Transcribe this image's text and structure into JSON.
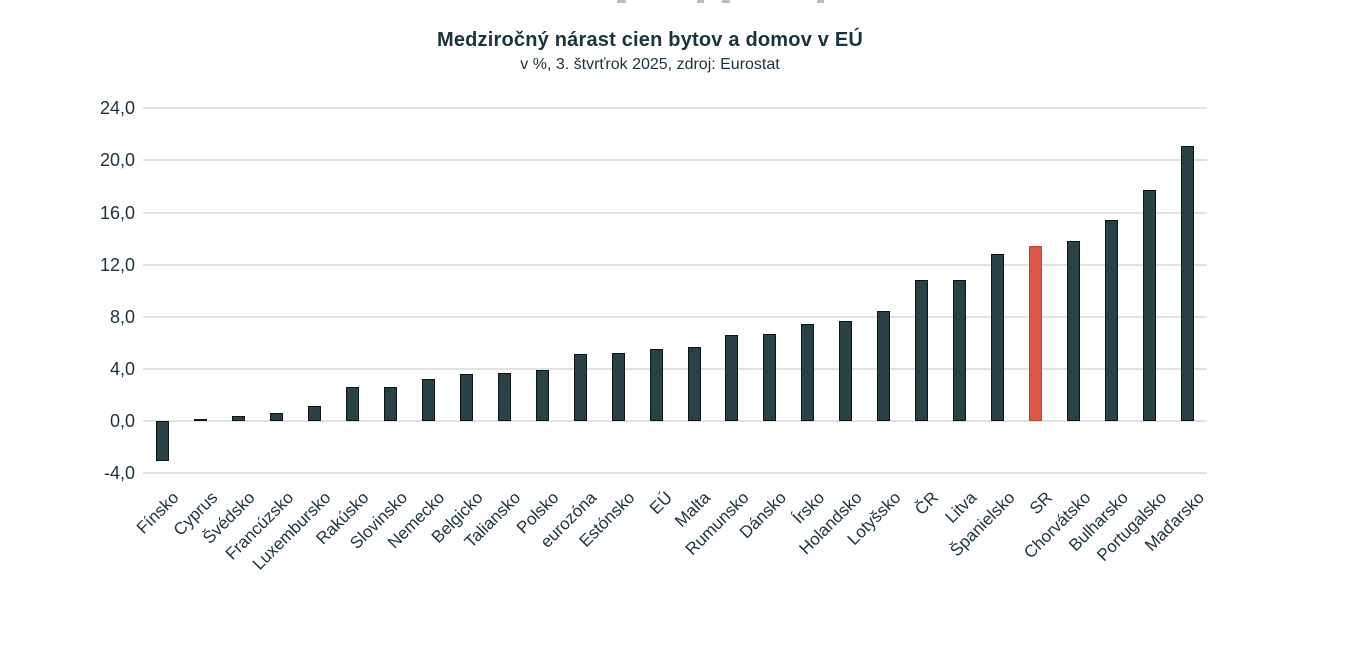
{
  "chart_data": {
    "type": "bar",
    "title": "Medziročný nárast cien bytov a domov v EÚ",
    "subtitle": "v %, 3. štvrťrok 2025, zdroj: Eurostat",
    "categories": [
      "Fínsko",
      "Cyprus",
      "Švédsko",
      "Francúzsko",
      "Luxembursko",
      "Rakúsko",
      "Slovinsko",
      "Nemecko",
      "Belgicko",
      "Taliansko",
      "Polsko",
      "eurozóna",
      "Estónsko",
      "EÚ",
      "Malta",
      "Rumunsko",
      "Dánsko",
      "Írsko",
      "Holandsko",
      "Lotyšsko",
      "ČR",
      "Litva",
      "Španielsko",
      "SR",
      "Chorvátsko",
      "Bulharsko",
      "Portugalsko",
      "Maďarsko"
    ],
    "values": [
      -3.1,
      0.0,
      0.4,
      0.6,
      1.1,
      2.6,
      2.6,
      3.2,
      3.6,
      3.7,
      3.9,
      5.1,
      5.2,
      5.5,
      5.7,
      6.6,
      6.7,
      7.4,
      7.7,
      8.4,
      10.8,
      10.8,
      12.8,
      13.4,
      13.8,
      15.4,
      17.7,
      21.1
    ],
    "highlight_category": "SR",
    "xlabel": "",
    "ylabel": "",
    "ylim": [
      -4,
      24
    ],
    "ytick_step": 4,
    "ytick_labels": [
      "24,0",
      "20,0",
      "16,0",
      "12,0",
      "8,0",
      "4,0",
      "0,0",
      "-4,0"
    ],
    "decimal_separator": ",",
    "grid": true,
    "legend_position": "none",
    "colors": {
      "bar_fill": "#294046",
      "bar_border": "#0c1518",
      "highlight_fill": "#da5749",
      "highlight_border": "#c04636",
      "grid_color": "#e2e2e2",
      "text_color": "#1c333e"
    }
  }
}
